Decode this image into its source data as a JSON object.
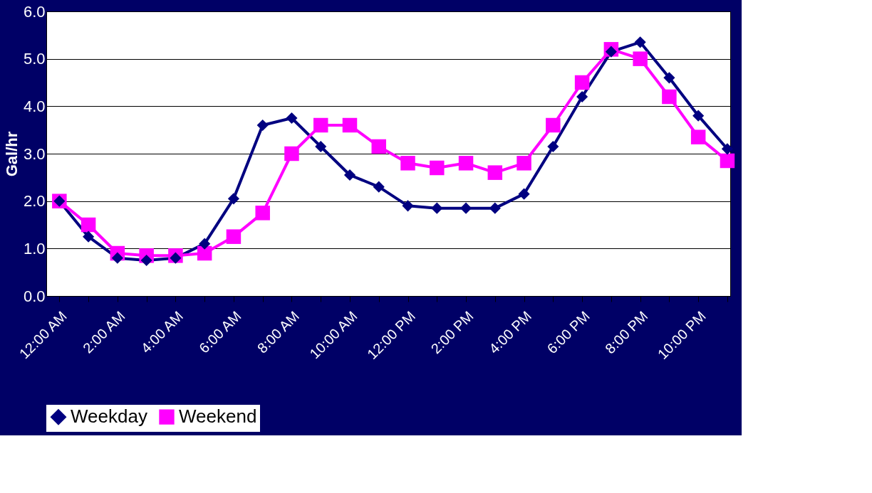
{
  "chart_data": {
    "type": "line",
    "ylabel": "Gal/hr",
    "categories": [
      "12:00 AM",
      null,
      "2:00 AM",
      null,
      "4:00 AM",
      null,
      "6:00 AM",
      null,
      "8:00 AM",
      null,
      "10:00 AM",
      null,
      "12:00 PM",
      null,
      "2:00 PM",
      null,
      "4:00 PM",
      null,
      "6:00 PM",
      null,
      "8:00 PM",
      null,
      "10:00 PM",
      null
    ],
    "series": [
      {
        "name": "Weekday",
        "color": "#000080",
        "marker": "diamond",
        "values": [
          2.0,
          1.25,
          0.8,
          0.75,
          0.8,
          1.1,
          2.05,
          3.6,
          3.75,
          3.15,
          2.55,
          2.3,
          1.9,
          1.85,
          1.85,
          1.85,
          2.15,
          3.15,
          4.2,
          5.15,
          5.35,
          4.6,
          3.8,
          3.1
        ]
      },
      {
        "name": "Weekend",
        "color": "#ff00ff",
        "marker": "square",
        "values": [
          2.0,
          1.5,
          0.9,
          0.85,
          0.85,
          0.9,
          1.25,
          1.75,
          3.0,
          3.6,
          3.6,
          3.15,
          2.8,
          2.7,
          2.8,
          2.6,
          2.8,
          3.6,
          4.5,
          5.2,
          5.0,
          4.2,
          3.35,
          2.85
        ]
      }
    ],
    "ylim": [
      0,
      6
    ],
    "yticks": [
      {
        "value": 0,
        "label": "0.0"
      },
      {
        "value": 1,
        "label": "1.0"
      },
      {
        "value": 2,
        "label": "2.0"
      },
      {
        "value": 3,
        "label": "3.0"
      },
      {
        "value": 4,
        "label": "4.0"
      },
      {
        "value": 5,
        "label": "5.0"
      },
      {
        "value": 6,
        "label": "6.0"
      }
    ],
    "grid": "y",
    "legend": "bottom",
    "line_style": "solid"
  }
}
